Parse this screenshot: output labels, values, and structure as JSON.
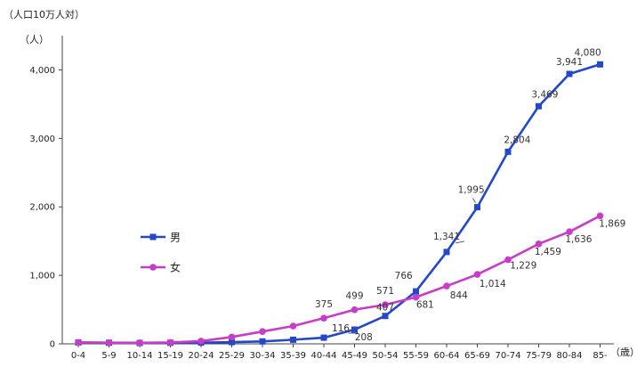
{
  "chart_data": {
    "type": "line",
    "unit_note": "（人口10万人対）",
    "ylabel": "（人）",
    "xlabel": "（歳）",
    "ylim": [
      0,
      4500
    ],
    "y_ticks": [
      0,
      1000,
      2000,
      3000,
      4000
    ],
    "y_tick_labels": [
      "0",
      "1,000",
      "2,000",
      "3,000",
      "4,000"
    ],
    "categories": [
      "0-4",
      "5-9",
      "10-14",
      "15-19",
      "20-24",
      "25-29",
      "30-34",
      "35-39",
      "40-44",
      "45-49",
      "50-54",
      "55-59",
      "60-64",
      "65-69",
      "70-74",
      "75-79",
      "80-84",
      "85-"
    ],
    "series": [
      {
        "name": "男",
        "color": "#2448c8",
        "marker": "square",
        "values": [
          20,
          15,
          12,
          15,
          18,
          25,
          35,
          60,
          90,
          208,
          407,
          766,
          1341,
          1995,
          2804,
          3469,
          3941,
          4080
        ],
        "labels": [
          "",
          "",
          "",
          "",
          "",
          "",
          "",
          "",
          "",
          "208",
          "407",
          "766",
          "1,341",
          "1,995",
          "2,804",
          "3,469",
          "3,941",
          "4,080"
        ]
      },
      {
        "name": "女",
        "color": "#c83cc8",
        "marker": "circle",
        "values": [
          20,
          18,
          15,
          20,
          40,
          100,
          180,
          260,
          375,
          499,
          571,
          681,
          844,
          1014,
          1229,
          1459,
          1636,
          1869
        ],
        "labels": [
          "",
          "",
          "",
          "",
          "",
          "",
          "",
          "",
          "375",
          "499",
          "571",
          "681",
          "844",
          "1,014",
          "1,229",
          "1,459",
          "1,636",
          "1,869"
        ]
      }
    ],
    "extra_labels": [
      "116"
    ],
    "grid": false,
    "legend_placement": "left-middle"
  }
}
